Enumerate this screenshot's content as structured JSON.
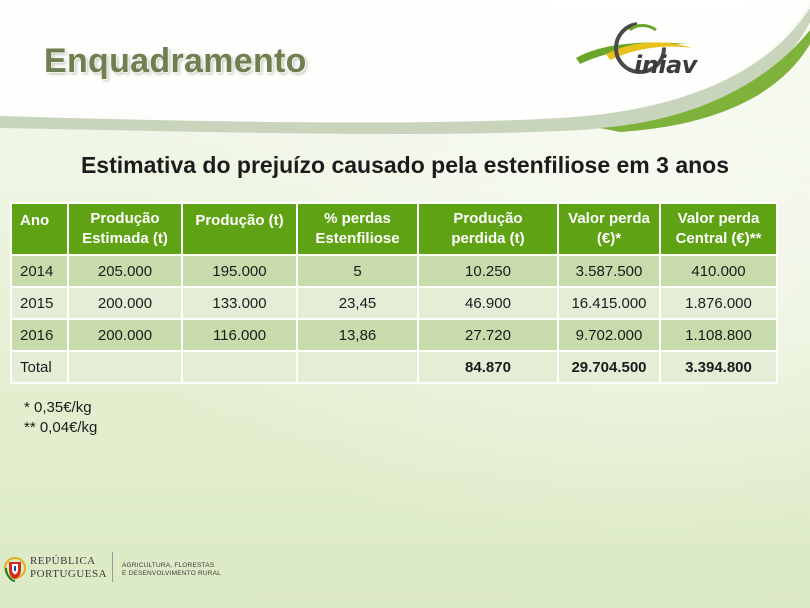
{
  "header": {
    "title": "Enquadramento",
    "logo_text": "iniav",
    "logo_icon": "iniav-swoosh-logo"
  },
  "subtitle": "Estimativa do prejuízo causado pela estenfiliose em 3 anos",
  "table": {
    "headers": [
      "Ano",
      "Produção Estimada (t)",
      "Produção (t)",
      "% perdas Estenfiliose",
      "Produção perdida (t)",
      "Valor perda (€)*",
      "Valor perda Central (€)**"
    ],
    "rows": [
      [
        "2014",
        "205.000",
        "195.000",
        "5",
        "10.250",
        "3.587.500",
        "410.000"
      ],
      [
        "2015",
        "200.000",
        "133.000",
        "23,45",
        "46.900",
        "16.415.000",
        "1.876.000"
      ],
      [
        "2016",
        "200.000",
        "116.000",
        "13,86",
        "27.720",
        "9.702.000",
        "1.108.800"
      ],
      [
        "Total",
        "",
        "",
        "",
        "84.870",
        "29.704.500",
        "3.394.800"
      ]
    ]
  },
  "notes": [
    "* 0,35€/kg",
    "** 0,04€/kg"
  ],
  "footer": {
    "emblem_icon": "portugal-coat-of-arms-icon",
    "republic_line1": "REPÚBLICA",
    "republic_line2": "PORTUGUESA",
    "ministry_line1": "AGRICULTURA, FLORESTAS",
    "ministry_line2": "E DESENVOLVIMENTO RURAL"
  },
  "colors": {
    "header_fill": "#5fa314",
    "row_dark": "#c7dcaa",
    "row_light": "#e4eed7",
    "title": "#6f7f52"
  }
}
